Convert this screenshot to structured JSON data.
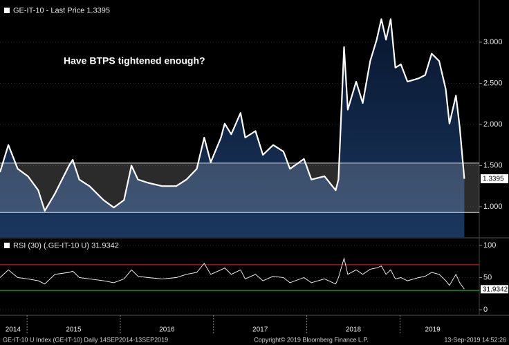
{
  "chart_data": [
    {
      "type": "area",
      "annotation": "Have BTPS tightened enough?",
      "x": [
        2014.71,
        2014.8,
        2014.9,
        2015.01,
        2015.12,
        2015.19,
        2015.3,
        2015.45,
        2015.49,
        2015.56,
        2015.67,
        2015.82,
        2015.93,
        2016.04,
        2016.12,
        2016.19,
        2016.3,
        2016.45,
        2016.6,
        2016.71,
        2016.82,
        2016.9,
        2016.97,
        2017.08,
        2017.12,
        2017.19,
        2017.29,
        2017.34,
        2017.45,
        2017.53,
        2017.64,
        2017.75,
        2017.82,
        2017.97,
        2018.05,
        2018.19,
        2018.31,
        2018.34,
        2018.4,
        2018.44,
        2018.53,
        2018.6,
        2018.68,
        2018.75,
        2018.8,
        2018.85,
        2018.9,
        2018.95,
        2019.01,
        2019.08,
        2019.2,
        2019.27,
        2019.34,
        2019.42,
        2019.49,
        2019.53,
        2019.6,
        2019.64,
        2019.69
      ],
      "series": [
        {
          "name": "GE-IT-10 - Last Price 1.3395",
          "color": "#ffffff",
          "values": [
            1.42,
            1.75,
            1.46,
            1.37,
            1.2,
            0.95,
            1.16,
            1.5,
            1.57,
            1.33,
            1.25,
            1.08,
            0.99,
            1.08,
            1.5,
            1.33,
            1.29,
            1.25,
            1.25,
            1.33,
            1.46,
            1.84,
            1.54,
            1.84,
            2.01,
            1.88,
            2.14,
            1.84,
            1.92,
            1.63,
            1.75,
            1.67,
            1.46,
            1.58,
            1.33,
            1.37,
            1.2,
            1.33,
            2.94,
            2.18,
            2.52,
            2.26,
            2.77,
            3.03,
            3.28,
            3.03,
            3.28,
            2.69,
            2.73,
            2.52,
            2.56,
            2.6,
            2.86,
            2.77,
            2.43,
            2.01,
            2.35,
            1.97,
            1.3395
          ]
        }
      ],
      "last_value_label": "1.3395",
      "hlines": [
        1.53,
        0.93
      ],
      "xlim": [
        2014.71,
        2019.85
      ],
      "ylim": [
        0.63,
        3.47
      ],
      "yticks": [
        {
          "value": 1,
          "label": "1.000"
        },
        {
          "value": 1.5,
          "label": "1.500"
        },
        {
          "value": 2,
          "label": "2.000"
        },
        {
          "value": 2.5,
          "label": "2.500"
        },
        {
          "value": 3,
          "label": "3.000"
        }
      ]
    },
    {
      "type": "line",
      "x": [
        2014.71,
        2014.8,
        2014.9,
        2015.01,
        2015.12,
        2015.19,
        2015.3,
        2015.45,
        2015.49,
        2015.56,
        2015.67,
        2015.82,
        2015.93,
        2016.04,
        2016.12,
        2016.19,
        2016.3,
        2016.45,
        2016.6,
        2016.71,
        2016.82,
        2016.9,
        2016.97,
        2017.08,
        2017.12,
        2017.19,
        2017.29,
        2017.34,
        2017.45,
        2017.53,
        2017.64,
        2017.75,
        2017.82,
        2017.97,
        2018.05,
        2018.19,
        2018.31,
        2018.34,
        2018.4,
        2018.44,
        2018.53,
        2018.6,
        2018.68,
        2018.75,
        2018.8,
        2018.85,
        2018.9,
        2018.95,
        2019.01,
        2019.08,
        2019.2,
        2019.27,
        2019.34,
        2019.42,
        2019.49,
        2019.53,
        2019.6,
        2019.64,
        2019.69
      ],
      "series": [
        {
          "name": "RSI (30) (.GE-IT-10 U) 31.9342",
          "color": "#ffffff",
          "values": [
            50,
            62,
            50,
            48,
            45,
            40,
            55,
            58,
            60,
            50,
            48,
            45,
            42,
            48,
            62,
            52,
            50,
            48,
            50,
            55,
            58,
            72,
            55,
            62,
            65,
            55,
            62,
            48,
            55,
            45,
            52,
            50,
            42,
            50,
            42,
            48,
            40,
            50,
            80,
            55,
            62,
            55,
            63,
            65,
            68,
            55,
            62,
            48,
            50,
            45,
            50,
            52,
            58,
            55,
            45,
            38,
            55,
            42,
            31.9342
          ]
        }
      ],
      "last_value_label": "31.9342",
      "thresholds": [
        {
          "value": 70,
          "color": "#d42a2a"
        },
        {
          "value": 30,
          "color": "#2fc93a"
        }
      ],
      "xlim": [
        2014.71,
        2019.85
      ],
      "ylim": [
        -7.5,
        110.7
      ],
      "yticks": [
        0,
        50,
        100
      ],
      "xgrid": [
        2015,
        2016,
        2017,
        2018,
        2019
      ],
      "xticks": [
        {
          "value": 2014.85,
          "label": "2014"
        },
        {
          "value": 2015.5,
          "label": "2015"
        },
        {
          "value": 2016.5,
          "label": "2016"
        },
        {
          "value": 2017.5,
          "label": "2017"
        },
        {
          "value": 2018.5,
          "label": "2018"
        },
        {
          "value": 2019.35,
          "label": "2019"
        }
      ]
    }
  ],
  "footer": {
    "left": "GE-IT-10 U Index (GE-IT-10)  Daily 14SEP2014-13SEP2019",
    "center": "Copyright© 2019 Bloomberg Finance L.P.",
    "right": "13-Sep-2019 14:52:26"
  }
}
